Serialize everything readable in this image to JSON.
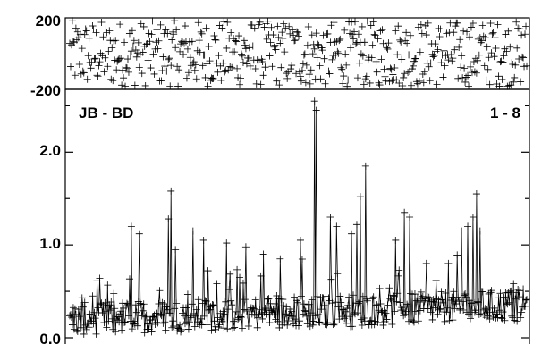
{
  "chart_data": [
    {
      "type": "scatter",
      "panel": "phase",
      "ylim": [
        -200,
        200
      ],
      "yticks": [
        {
          "value": 200,
          "label": "200"
        },
        {
          "value": -200,
          "label": "-200"
        }
      ],
      "x_count": 520,
      "values_description": "phase values scattered uniformly between -200 and 200 (deg)",
      "color": "#000000"
    },
    {
      "type": "scatter",
      "panel": "amplitude",
      "baseline_label": "JB - BD",
      "channel_label": "1 - 8",
      "ylim": [
        0,
        2.6
      ],
      "yticks": [
        {
          "value": 0.0,
          "label": "0.0"
        },
        {
          "value": 1.0,
          "label": "1.0"
        },
        {
          "value": 2.0,
          "label": "2.0"
        }
      ],
      "minor_yticks": [
        0.5,
        1.5,
        2.5
      ],
      "x_count": 520,
      "baseline_level_start": 0.15,
      "baseline_level_end": 0.3,
      "peaks": [
        {
          "i": 70,
          "v": 1.2
        },
        {
          "i": 79,
          "v": 1.12
        },
        {
          "i": 112,
          "v": 1.28
        },
        {
          "i": 115,
          "v": 1.58
        },
        {
          "i": 120,
          "v": 0.95
        },
        {
          "i": 140,
          "v": 1.15
        },
        {
          "i": 152,
          "v": 1.05
        },
        {
          "i": 178,
          "v": 1.02
        },
        {
          "i": 200,
          "v": 0.98
        },
        {
          "i": 220,
          "v": 0.9
        },
        {
          "i": 239,
          "v": 0.85
        },
        {
          "i": 262,
          "v": 1.05
        },
        {
          "i": 278,
          "v": 2.55
        },
        {
          "i": 280,
          "v": 2.45
        },
        {
          "i": 296,
          "v": 1.3
        },
        {
          "i": 303,
          "v": 1.2
        },
        {
          "i": 320,
          "v": 1.12
        },
        {
          "i": 326,
          "v": 1.22
        },
        {
          "i": 330,
          "v": 1.52
        },
        {
          "i": 336,
          "v": 1.85
        },
        {
          "i": 370,
          "v": 1.05
        },
        {
          "i": 380,
          "v": 1.35
        },
        {
          "i": 386,
          "v": 1.3
        },
        {
          "i": 405,
          "v": 0.8
        },
        {
          "i": 430,
          "v": 0.8
        },
        {
          "i": 445,
          "v": 1.15
        },
        {
          "i": 452,
          "v": 1.2
        },
        {
          "i": 458,
          "v": 1.3
        },
        {
          "i": 462,
          "v": 1.55
        },
        {
          "i": 466,
          "v": 1.15
        },
        {
          "i": 500,
          "v": 0.5
        }
      ],
      "color": "#000000"
    }
  ]
}
